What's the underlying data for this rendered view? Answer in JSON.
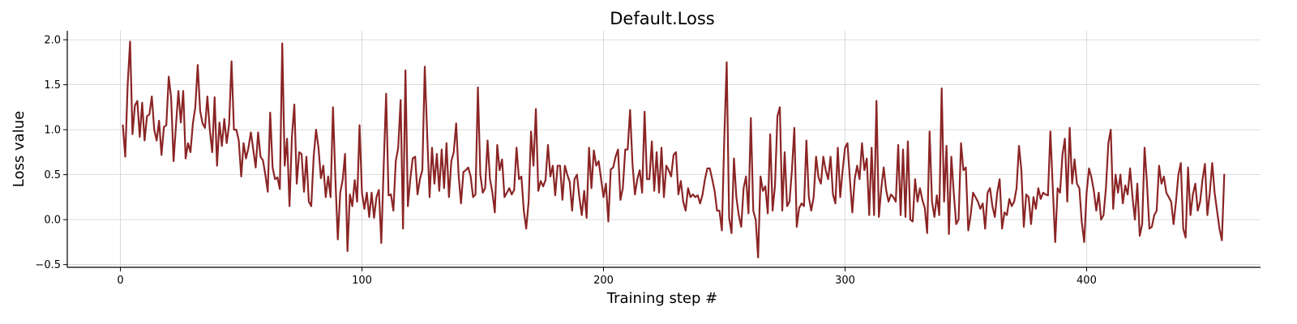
{
  "chart_data": {
    "type": "line",
    "title": "Default.Loss",
    "xlabel": "Training step #",
    "ylabel": "Loss value",
    "xlim": [
      -22,
      472
    ],
    "ylim": [
      -0.53,
      2.1
    ],
    "xticks": [
      0,
      100,
      200,
      300,
      400
    ],
    "yticks": [
      -0.5,
      0.0,
      0.5,
      1.0,
      1.5,
      2.0
    ],
    "xtick_labels": [
      "0",
      "100",
      "200",
      "300",
      "400"
    ],
    "ytick_labels": [
      "−0.5",
      "0.0",
      "0.5",
      "1.0",
      "1.5",
      "2.0"
    ],
    "grid": true,
    "legend": "none",
    "series": [
      {
        "color": "#8b2525",
        "x_start": 1,
        "x_step": 1,
        "values": [
          1.05,
          0.7,
          1.5,
          1.98,
          0.95,
          1.27,
          1.32,
          0.92,
          1.3,
          0.88,
          1.15,
          1.17,
          1.37,
          1.0,
          0.88,
          1.1,
          0.72,
          1.03,
          1.05,
          1.59,
          1.35,
          0.65,
          1.05,
          1.43,
          1.08,
          1.43,
          0.68,
          0.85,
          0.75,
          1.07,
          1.25,
          1.72,
          1.21,
          1.07,
          1.02,
          1.37,
          1.0,
          0.75,
          1.36,
          0.6,
          1.08,
          0.82,
          1.12,
          0.85,
          1.06,
          1.76,
          1.0,
          1.0,
          0.88,
          0.48,
          0.85,
          0.68,
          0.8,
          0.97,
          0.78,
          0.58,
          0.97,
          0.7,
          0.66,
          0.5,
          0.31,
          1.19,
          0.58,
          0.45,
          0.47,
          0.34,
          1.96,
          0.6,
          0.9,
          0.15,
          0.92,
          1.28,
          0.4,
          0.75,
          0.73,
          0.31,
          0.7,
          0.2,
          0.15,
          0.7,
          1.0,
          0.8,
          0.46,
          0.6,
          0.25,
          0.48,
          0.25,
          1.25,
          0.45,
          -0.22,
          0.3,
          0.44,
          0.73,
          -0.35,
          0.28,
          0.15,
          0.44,
          0.2,
          1.05,
          0.3,
          0.12,
          0.3,
          0.03,
          0.3,
          0.02,
          0.25,
          0.33,
          -0.26,
          0.6,
          1.4,
          0.27,
          0.28,
          0.1,
          0.65,
          0.8,
          1.33,
          -0.1,
          1.66,
          0.15,
          0.45,
          0.68,
          0.7,
          0.28,
          0.45,
          0.55,
          1.7,
          0.95,
          0.25,
          0.8,
          0.4,
          0.73,
          0.32,
          0.78,
          0.35,
          0.85,
          0.25,
          0.65,
          0.75,
          1.07,
          0.5,
          0.18,
          0.53,
          0.55,
          0.58,
          0.48,
          0.25,
          0.28,
          1.47,
          0.5,
          0.3,
          0.35,
          0.88,
          0.45,
          0.3,
          0.08,
          0.83,
          0.55,
          0.67,
          0.25,
          0.3,
          0.35,
          0.28,
          0.33,
          0.8,
          0.45,
          0.48,
          0.1,
          -0.1,
          0.2,
          0.98,
          0.6,
          1.23,
          0.32,
          0.43,
          0.37,
          0.44,
          0.83,
          0.48,
          0.6,
          0.27,
          0.6,
          0.6,
          0.22,
          0.6,
          0.5,
          0.42,
          0.1,
          0.45,
          0.5,
          0.25,
          0.05,
          0.32,
          0.02,
          0.8,
          0.35,
          0.77,
          0.6,
          0.65,
          0.45,
          0.25,
          0.4,
          -0.02,
          0.56,
          0.58,
          0.7,
          0.78,
          0.22,
          0.35,
          0.78,
          0.78,
          1.22,
          0.62,
          0.28,
          0.45,
          0.55,
          0.3,
          1.2,
          0.45,
          0.45,
          0.87,
          0.32,
          0.75,
          0.3,
          0.8,
          0.25,
          0.6,
          0.55,
          0.48,
          0.72,
          0.75,
          0.28,
          0.43,
          0.2,
          0.1,
          0.35,
          0.25,
          0.28,
          0.25,
          0.27,
          0.18,
          0.28,
          0.45,
          0.57,
          0.57,
          0.45,
          0.32,
          0.1,
          0.1,
          -0.12,
          0.9,
          1.75,
          0.02,
          -0.15,
          0.68,
          0.25,
          0.05,
          -0.08,
          0.35,
          0.48,
          0.07,
          1.13,
          0.1,
          0.0,
          -0.42,
          0.48,
          0.32,
          0.37,
          0.07,
          0.95,
          0.1,
          0.38,
          1.15,
          1.25,
          0.1,
          0.75,
          0.15,
          0.2,
          0.55,
          1.02,
          -0.08,
          0.13,
          0.18,
          0.15,
          0.88,
          0.25,
          0.1,
          0.25,
          0.7,
          0.47,
          0.4,
          0.7,
          0.55,
          0.45,
          0.7,
          0.28,
          0.18,
          0.8,
          0.25,
          0.55,
          0.8,
          0.85,
          0.45,
          0.08,
          0.45,
          0.6,
          0.45,
          0.85,
          0.55,
          0.68,
          0.05,
          0.8,
          0.05,
          1.32,
          0.03,
          0.35,
          0.58,
          0.33,
          0.2,
          0.28,
          0.25,
          0.2,
          0.83,
          0.05,
          0.78,
          0.03,
          0.87,
          0.0,
          -0.02,
          0.45,
          0.2,
          0.35,
          0.22,
          0.13,
          -0.15,
          0.98,
          0.2,
          0.03,
          0.27,
          0.05,
          1.46,
          0.2,
          0.82,
          -0.16,
          0.7,
          0.3,
          -0.05,
          0.0,
          0.85,
          0.55,
          0.58,
          -0.12,
          0.05,
          0.3,
          0.25,
          0.2,
          0.12,
          0.18,
          -0.1,
          0.3,
          0.35,
          0.15,
          0.03,
          0.3,
          0.45,
          -0.1,
          0.08,
          0.05,
          0.23,
          0.15,
          0.2,
          0.35,
          0.82,
          0.55,
          -0.08,
          0.28,
          0.25,
          -0.05,
          0.25,
          0.12,
          0.35,
          0.23,
          0.3,
          0.28,
          0.27,
          0.98,
          0.35,
          -0.25,
          0.35,
          0.3,
          0.72,
          0.9,
          0.2,
          1.02,
          0.4,
          0.67,
          0.4,
          0.35,
          -0.03,
          -0.25,
          0.3,
          0.57,
          0.47,
          0.32,
          0.1,
          0.3,
          0.0,
          0.05,
          0.35,
          0.85,
          1.0,
          0.12,
          0.5,
          0.3,
          0.5,
          0.18,
          0.38,
          0.28,
          0.57,
          0.25,
          0.0,
          0.4,
          -0.18,
          -0.05,
          0.8,
          0.4,
          -0.1,
          -0.08,
          0.05,
          0.1,
          0.6,
          0.4,
          0.48,
          0.3,
          0.25,
          0.2,
          -0.05,
          0.2,
          0.5,
          0.63,
          -0.1,
          -0.2,
          0.58,
          0.05,
          0.28,
          0.4,
          0.1,
          0.2,
          0.45,
          0.62,
          0.05,
          0.3,
          0.63,
          0.3,
          0.1,
          -0.1,
          -0.23,
          0.5
        ]
      }
    ]
  }
}
